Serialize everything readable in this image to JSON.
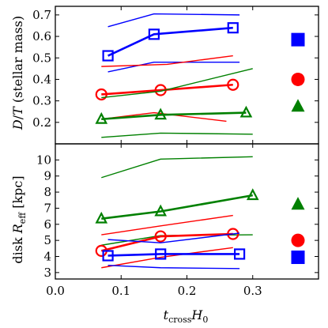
{
  "chart_data": [
    {
      "type": "line",
      "ylabel": "$D/T$ (stellar mass)",
      "ylabel_text": "D/T (stellar mass)",
      "xlim": [
        0.0,
        0.4
      ],
      "ylim": [
        0.1,
        0.74
      ],
      "yticks": [
        "0.2",
        "0.3",
        "0.4",
        "0.5",
        "0.6",
        "0.7"
      ],
      "series": [
        {
          "color": "#0000ff",
          "marker": "square-open",
          "x": [
            0.08,
            0.15,
            0.27
          ],
          "y": [
            0.51,
            0.61,
            0.64
          ],
          "bold": true
        },
        {
          "color": "#0000ff",
          "x": [
            0.08,
            0.15,
            0.28
          ],
          "y": [
            0.645,
            0.705,
            0.7
          ]
        },
        {
          "color": "#0000ff",
          "x": [
            0.08,
            0.15,
            0.28
          ],
          "y": [
            0.435,
            0.48,
            0.48
          ]
        },
        {
          "color": "#ff0000",
          "marker": "circle-open",
          "x": [
            0.07,
            0.16,
            0.27
          ],
          "y": [
            0.33,
            0.35,
            0.375
          ],
          "bold": true
        },
        {
          "color": "#ff0000",
          "x": [
            0.07,
            0.17,
            0.27
          ],
          "y": [
            0.46,
            0.47,
            0.51
          ]
        },
        {
          "color": "#ff0000",
          "x": [
            0.07,
            0.15,
            0.26
          ],
          "y": [
            0.215,
            0.245,
            0.205
          ]
        },
        {
          "color": "#008000",
          "marker": "triangle-open",
          "x": [
            0.07,
            0.16,
            0.29
          ],
          "y": [
            0.215,
            0.235,
            0.245
          ],
          "bold": true
        },
        {
          "color": "#008000",
          "x": [
            0.07,
            0.16,
            0.3
          ],
          "y": [
            0.315,
            0.345,
            0.45
          ]
        },
        {
          "color": "#008000",
          "x": [
            0.07,
            0.16,
            0.3
          ],
          "y": [
            0.13,
            0.15,
            0.145
          ]
        }
      ],
      "legend_markers": [
        {
          "color": "#0000ff",
          "marker": "square",
          "y": 0.585
        },
        {
          "color": "#ff0000",
          "marker": "circle",
          "y": 0.4
        },
        {
          "color": "#008000",
          "marker": "triangle",
          "y": 0.275
        }
      ]
    },
    {
      "type": "line",
      "xlabel": "$t_{\\rm cross} H_0$",
      "xlabel_main": "t",
      "xlabel_sub": "cross",
      "xlabel_tail": "H",
      "xlabel_tail_sub": "0",
      "ylabel": "disk $R_{\\rm eff}$ [kpc]",
      "ylabel_main": "disk R",
      "ylabel_sub": "eff",
      "ylabel_tail": " [kpc]",
      "xlim": [
        0.0,
        0.4
      ],
      "ylim": [
        2.6,
        11.0
      ],
      "xticks": [
        "0.0",
        "0.1",
        "0.2",
        "0.3"
      ],
      "yticks": [
        "3",
        "4",
        "5",
        "6",
        "7",
        "8",
        "9",
        "10"
      ],
      "series": [
        {
          "color": "#008000",
          "marker": "triangle-open",
          "x": [
            0.07,
            0.16,
            0.3
          ],
          "y": [
            6.35,
            6.8,
            7.8
          ],
          "bold": true
        },
        {
          "color": "#008000",
          "x": [
            0.07,
            0.16,
            0.3
          ],
          "y": [
            8.9,
            10.05,
            10.2
          ]
        },
        {
          "color": "#008000",
          "x": [
            0.07,
            0.16,
            0.3
          ],
          "y": [
            4.7,
            5.3,
            5.35
          ]
        },
        {
          "color": "#ff0000",
          "marker": "circle-open",
          "x": [
            0.07,
            0.16,
            0.27
          ],
          "y": [
            4.35,
            5.25,
            5.4
          ],
          "bold": true
        },
        {
          "color": "#ff0000",
          "x": [
            0.07,
            0.16,
            0.27
          ],
          "y": [
            5.35,
            5.9,
            6.55
          ]
        },
        {
          "color": "#ff0000",
          "x": [
            0.07,
            0.16,
            0.27
          ],
          "y": [
            3.3,
            3.95,
            4.55
          ]
        },
        {
          "color": "#0000ff",
          "marker": "square-open",
          "x": [
            0.08,
            0.16,
            0.28
          ],
          "y": [
            4.05,
            4.15,
            4.15
          ],
          "bold": true
        },
        {
          "color": "#0000ff",
          "x": [
            0.08,
            0.16,
            0.28
          ],
          "y": [
            5.05,
            4.85,
            5.45
          ]
        },
        {
          "color": "#0000ff",
          "x": [
            0.08,
            0.16,
            0.28
          ],
          "y": [
            3.45,
            3.3,
            3.25
          ]
        }
      ],
      "legend_markers": [
        {
          "color": "#008000",
          "marker": "triangle",
          "y": 7.25
        },
        {
          "color": "#ff0000",
          "marker": "circle",
          "y": 5.0
        },
        {
          "color": "#0000ff",
          "marker": "square",
          "y": 3.95
        }
      ]
    }
  ]
}
